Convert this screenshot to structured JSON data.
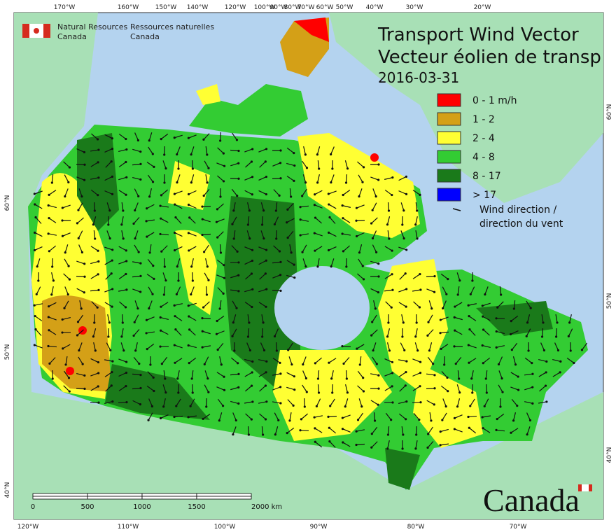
{
  "header": {
    "agency_en": [
      "Natural Resources",
      "Canada"
    ],
    "agency_fr": [
      "Ressources naturelles",
      "Canada"
    ]
  },
  "title": [
    "Transport Wind Vector",
    "Vecteur éolien de transp"
  ],
  "date": "2016-03-31",
  "legend": {
    "items": [
      {
        "label": "0 - 1 m/h",
        "color": "#ff0000"
      },
      {
        "label": "1 - 2",
        "color": "#d4a017"
      },
      {
        "label": "2 - 4",
        "color": "#ffff33"
      },
      {
        "label": "4 - 8",
        "color": "#33cc33"
      },
      {
        "label": "8 - 17",
        "color": "#1a7a1a"
      },
      {
        "label": "> 17",
        "color": "#0000ff"
      }
    ],
    "arrow_label": [
      "Wind direction /",
      "direction du vent"
    ]
  },
  "graticule": {
    "top": [
      "170°W",
      "160°W",
      "150°W",
      "140°W",
      "120°W",
      "100°W",
      "90°W",
      "80°W",
      "70°W",
      "60°W",
      "50°W",
      "40°W",
      "30°W",
      "20°W"
    ],
    "bottom": [
      "120°W",
      "110°W",
      "100°W",
      "90°W",
      "80°W",
      "70°W"
    ],
    "left": [
      "60°N",
      "50°N",
      "40°N"
    ],
    "right": [
      "60°N",
      "50°N",
      "40°N"
    ]
  },
  "scale_bar": {
    "labels": [
      "0",
      "500",
      "1000",
      "1500",
      "2000 km"
    ]
  },
  "wordmark": "Canada"
}
